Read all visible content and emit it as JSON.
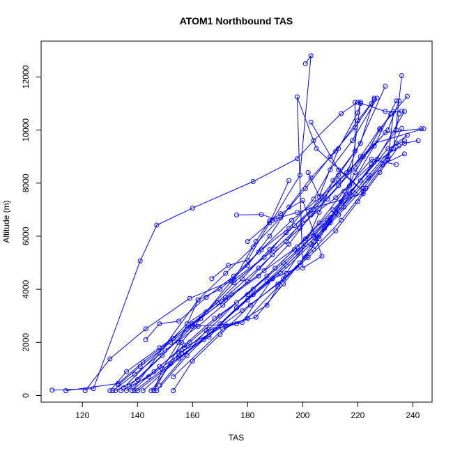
{
  "chart_data": {
    "type": "line",
    "title": "ATOM1 Northbound TAS",
    "xlabel": "TAS",
    "ylabel": "Altitude (m)",
    "xlim": [
      105,
      247
    ],
    "ylim": [
      -250,
      13350
    ],
    "x_ticks": [
      120,
      140,
      160,
      180,
      200,
      220,
      240
    ],
    "y_ticks": [
      0,
      2000,
      4000,
      6000,
      8000,
      10000,
      12000
    ],
    "grid": false,
    "legend": "none",
    "color": "#0000ff",
    "marker": "open-circle",
    "series": [
      {
        "values": [
          [
            109,
            200
          ],
          [
            124,
            260
          ],
          [
            141,
            5070
          ],
          [
            147,
            6420
          ],
          [
            160,
            7060
          ],
          [
            182,
            8060
          ],
          [
            198,
            8920
          ],
          [
            204,
            9600
          ],
          [
            214,
            10620
          ],
          [
            220,
            11050
          ],
          [
            230,
            10700
          ],
          [
            236,
            10720
          ]
        ]
      },
      {
        "values": [
          [
            114,
            180
          ],
          [
            133,
            450
          ],
          [
            142,
            1260
          ],
          [
            153,
            2150
          ],
          [
            165,
            3150
          ],
          [
            175,
            4250
          ],
          [
            186,
            5200
          ],
          [
            194,
            6140
          ],
          [
            204,
            7000
          ],
          [
            213,
            8100
          ],
          [
            222,
            9000
          ],
          [
            231,
            10010
          ],
          [
            235,
            11100
          ]
        ]
      },
      {
        "values": [
          [
            121,
            180
          ],
          [
            130,
            1380
          ],
          [
            143,
            2510
          ],
          [
            159,
            3660
          ],
          [
            175,
            4350
          ],
          [
            190,
            5520
          ],
          [
            200,
            6500
          ],
          [
            212,
            7450
          ],
          [
            225,
            8700
          ],
          [
            237,
            9500
          ],
          [
            242,
            9600
          ]
        ]
      },
      {
        "values": [
          [
            130,
            180
          ],
          [
            136,
            900
          ],
          [
            148,
            1800
          ],
          [
            160,
            2700
          ],
          [
            172,
            3600
          ],
          [
            184,
            4500
          ],
          [
            195,
            5700
          ],
          [
            203,
            6800
          ],
          [
            213,
            7900
          ],
          [
            221,
            9000
          ],
          [
            228,
            10050
          ],
          [
            238,
            11270
          ]
        ]
      },
      {
        "values": [
          [
            131,
            180
          ],
          [
            139,
            800
          ],
          [
            150,
            1700
          ],
          [
            162,
            2600
          ],
          [
            171,
            3400
          ],
          [
            180,
            4300
          ],
          [
            189,
            5300
          ],
          [
            199,
            6300
          ],
          [
            209,
            7400
          ],
          [
            219,
            8600
          ],
          [
            230,
            9900
          ],
          [
            243,
            10050
          ]
        ]
      },
      {
        "values": [
          [
            132,
            180
          ],
          [
            140,
            600
          ],
          [
            149,
            1500
          ],
          [
            158,
            2500
          ],
          [
            169,
            3500
          ],
          [
            178,
            4400
          ],
          [
            188,
            5500
          ],
          [
            197,
            6400
          ],
          [
            207,
            7400
          ],
          [
            217,
            8500
          ],
          [
            226,
            9500
          ],
          [
            244,
            10050
          ]
        ]
      },
      {
        "values": [
          [
            133,
            400
          ],
          [
            141,
            1100
          ],
          [
            152,
            2000
          ],
          [
            163,
            2900
          ],
          [
            174,
            3800
          ],
          [
            186,
            4700
          ],
          [
            198,
            5600
          ],
          [
            209,
            6600
          ],
          [
            219,
            7600
          ],
          [
            229,
            8700
          ],
          [
            237,
            9100
          ]
        ]
      },
      {
        "values": [
          [
            134,
            180
          ],
          [
            144,
            700
          ],
          [
            156,
            1600
          ],
          [
            166,
            2500
          ],
          [
            176,
            3500
          ],
          [
            187,
            4500
          ],
          [
            197,
            5500
          ],
          [
            206,
            6500
          ],
          [
            215,
            7700
          ],
          [
            225,
            8900
          ],
          [
            234,
            8700
          ]
        ]
      },
      {
        "values": [
          [
            136,
            180
          ],
          [
            146,
            900
          ],
          [
            157,
            1900
          ],
          [
            168,
            2900
          ],
          [
            180,
            3800
          ],
          [
            190,
            4800
          ],
          [
            201,
            5900
          ],
          [
            211,
            7000
          ],
          [
            221,
            8100
          ],
          [
            231,
            9300
          ],
          [
            237,
            9600
          ]
        ]
      },
      {
        "values": [
          [
            138,
            180
          ],
          [
            148,
            1100
          ],
          [
            159,
            2000
          ],
          [
            170,
            3000
          ],
          [
            182,
            4000
          ],
          [
            193,
            5000
          ],
          [
            204,
            6000
          ],
          [
            214,
            7100
          ],
          [
            224,
            8300
          ],
          [
            234,
            9500
          ],
          [
            238,
            9800
          ]
        ]
      },
      {
        "values": [
          [
            139,
            180
          ],
          [
            152,
            1200
          ],
          [
            166,
            2300
          ],
          [
            178,
            3200
          ],
          [
            191,
            4200
          ],
          [
            202,
            5200
          ],
          [
            212,
            6200
          ],
          [
            220,
            7300
          ],
          [
            228,
            8400
          ],
          [
            235,
            9400
          ]
        ]
      },
      {
        "values": [
          [
            142,
            180
          ],
          [
            155,
            1400
          ],
          [
            168,
            2500
          ],
          [
            180,
            3600
          ],
          [
            192,
            4600
          ],
          [
            203,
            5700
          ],
          [
            213,
            6800
          ],
          [
            222,
            7800
          ],
          [
            231,
            9000
          ],
          [
            236,
            10060
          ]
        ]
      },
      {
        "values": [
          [
            145,
            180
          ],
          [
            155,
            1600
          ],
          [
            166,
            2200
          ],
          [
            176,
            3300
          ],
          [
            187,
            4300
          ],
          [
            198,
            5400
          ],
          [
            208,
            6500
          ],
          [
            217,
            7600
          ],
          [
            226,
            8800
          ],
          [
            234,
            10000
          ],
          [
            235,
            10600
          ]
        ]
      },
      {
        "values": [
          [
            146,
            180
          ],
          [
            149,
            1000
          ],
          [
            155,
            2000
          ],
          [
            162,
            3600
          ],
          [
            172,
            4600
          ],
          [
            182,
            5600
          ],
          [
            192,
            6700
          ],
          [
            201,
            7800
          ],
          [
            210,
            9000
          ],
          [
            219,
            10100
          ],
          [
            225,
            11000
          ]
        ]
      },
      {
        "values": [
          [
            147,
            180
          ],
          [
            158,
            1500
          ],
          [
            170,
            2700
          ],
          [
            182,
            3800
          ],
          [
            194,
            4900
          ],
          [
            205,
            6000
          ],
          [
            215,
            7100
          ],
          [
            224,
            8200
          ],
          [
            233,
            9300
          ],
          [
            236,
            12050
          ]
        ]
      },
      {
        "values": [
          [
            153,
            180
          ],
          [
            160,
            1300
          ],
          [
            170,
            2300
          ],
          [
            181,
            3400
          ],
          [
            193,
            4400
          ],
          [
            204,
            5500
          ],
          [
            214,
            6600
          ],
          [
            223,
            7800
          ],
          [
            231,
            8900
          ],
          [
            233,
            10700
          ]
        ]
      },
      {
        "values": [
          [
            135,
            300
          ],
          [
            158,
            2700
          ],
          [
            172,
            3700
          ],
          [
            184,
            4800
          ],
          [
            194,
            5800
          ],
          [
            203,
            7000
          ],
          [
            213,
            8300
          ],
          [
            221,
            9500
          ],
          [
            226,
            11200
          ]
        ]
      },
      {
        "values": [
          [
            137,
            350
          ],
          [
            160,
            2600
          ],
          [
            176,
            2700
          ],
          [
            187,
            3400
          ],
          [
            194,
            4600
          ],
          [
            201,
            5700
          ],
          [
            206,
            6900
          ],
          [
            211,
            8100
          ],
          [
            219,
            9200
          ],
          [
            219,
            11050
          ]
        ]
      },
      {
        "values": [
          [
            138,
            180
          ],
          [
            162,
            3600
          ],
          [
            170,
            4000
          ],
          [
            180,
            4900
          ],
          [
            188,
            6000
          ],
          [
            195,
            7100
          ],
          [
            203,
            8200
          ],
          [
            212,
            9200
          ],
          [
            220,
            10350
          ],
          [
            226,
            11150
          ]
        ]
      },
      {
        "values": [
          [
            140,
            180
          ],
          [
            164,
            2100
          ],
          [
            176,
            3300
          ],
          [
            189,
            4400
          ],
          [
            199,
            5400
          ],
          [
            210,
            6500
          ],
          [
            218,
            7700
          ],
          [
            227,
            8900
          ],
          [
            237,
            10700
          ]
        ]
      },
      {
        "values": [
          [
            143,
            2100
          ],
          [
            148,
            2700
          ],
          [
            155,
            2800
          ],
          [
            165,
            3700
          ],
          [
            175,
            4500
          ],
          [
            185,
            5500
          ],
          [
            196,
            6600
          ],
          [
            207,
            7500
          ],
          [
            216,
            8400
          ],
          [
            230,
            11650
          ]
        ]
      },
      {
        "values": [
          [
            146,
            180
          ],
          [
            156,
            2000
          ],
          [
            163,
            2900
          ],
          [
            174,
            4300
          ],
          [
            184,
            5400
          ],
          [
            195,
            6300
          ],
          [
            204,
            7400
          ],
          [
            210,
            8500
          ],
          [
            218,
            9600
          ],
          [
            227,
            11200
          ]
        ]
      },
      {
        "values": [
          [
            148,
            380
          ],
          [
            165,
            2450
          ],
          [
            178,
            2750
          ],
          [
            189,
            4400
          ],
          [
            198,
            4800
          ],
          [
            204,
            5800
          ],
          [
            210,
            6700
          ],
          [
            217,
            7900
          ],
          [
            221,
            11050
          ]
        ]
      },
      {
        "values": [
          [
            153,
            700
          ],
          [
            171,
            2500
          ],
          [
            180,
            2900
          ],
          [
            191,
            4100
          ],
          [
            201,
            5200
          ],
          [
            208,
            6300
          ],
          [
            214,
            7300
          ],
          [
            219,
            8400
          ],
          [
            228,
            10000
          ],
          [
            232,
            10600
          ]
        ]
      },
      {
        "values": [
          [
            157,
            1800
          ],
          [
            172,
            2650
          ],
          [
            183,
            2950
          ],
          [
            193,
            4200
          ],
          [
            199,
            5000
          ],
          [
            206,
            5900
          ],
          [
            212,
            6900
          ],
          [
            218,
            8000
          ],
          [
            226,
            9400
          ],
          [
            234,
            11100
          ]
        ]
      },
      {
        "values": [
          [
            175,
            4350
          ],
          [
            183,
            5800
          ],
          [
            188,
            6580
          ],
          [
            192,
            6850
          ],
          [
            200,
            7350
          ],
          [
            207,
            5250
          ],
          [
            200,
            4800
          ],
          [
            198,
            11250
          ],
          [
            205,
            9300
          ],
          [
            222,
            7700
          ],
          [
            213,
            8500
          ],
          [
            203,
            10300
          ]
        ]
      },
      {
        "values": [
          [
            176,
            6800
          ],
          [
            185,
            6820
          ],
          [
            190,
            6650
          ],
          [
            198,
            6900
          ],
          [
            222,
            7600
          ],
          [
            222,
            7800
          ]
        ]
      },
      {
        "values": [
          [
            195,
            8100
          ],
          [
            188,
            6500
          ],
          [
            180,
            5100
          ],
          [
            173,
            4900
          ],
          [
            167,
            4400
          ]
        ]
      },
      {
        "values": [
          [
            201,
            12500
          ],
          [
            203,
            12800
          ],
          [
            199,
            8300
          ],
          [
            189,
            6600
          ],
          [
            180,
            5800
          ]
        ]
      },
      {
        "values": [
          [
            202,
            8400
          ],
          [
            206,
            7500
          ],
          [
            213,
            9300
          ],
          [
            220,
            10650
          ],
          [
            221,
            11000
          ]
        ]
      }
    ]
  }
}
